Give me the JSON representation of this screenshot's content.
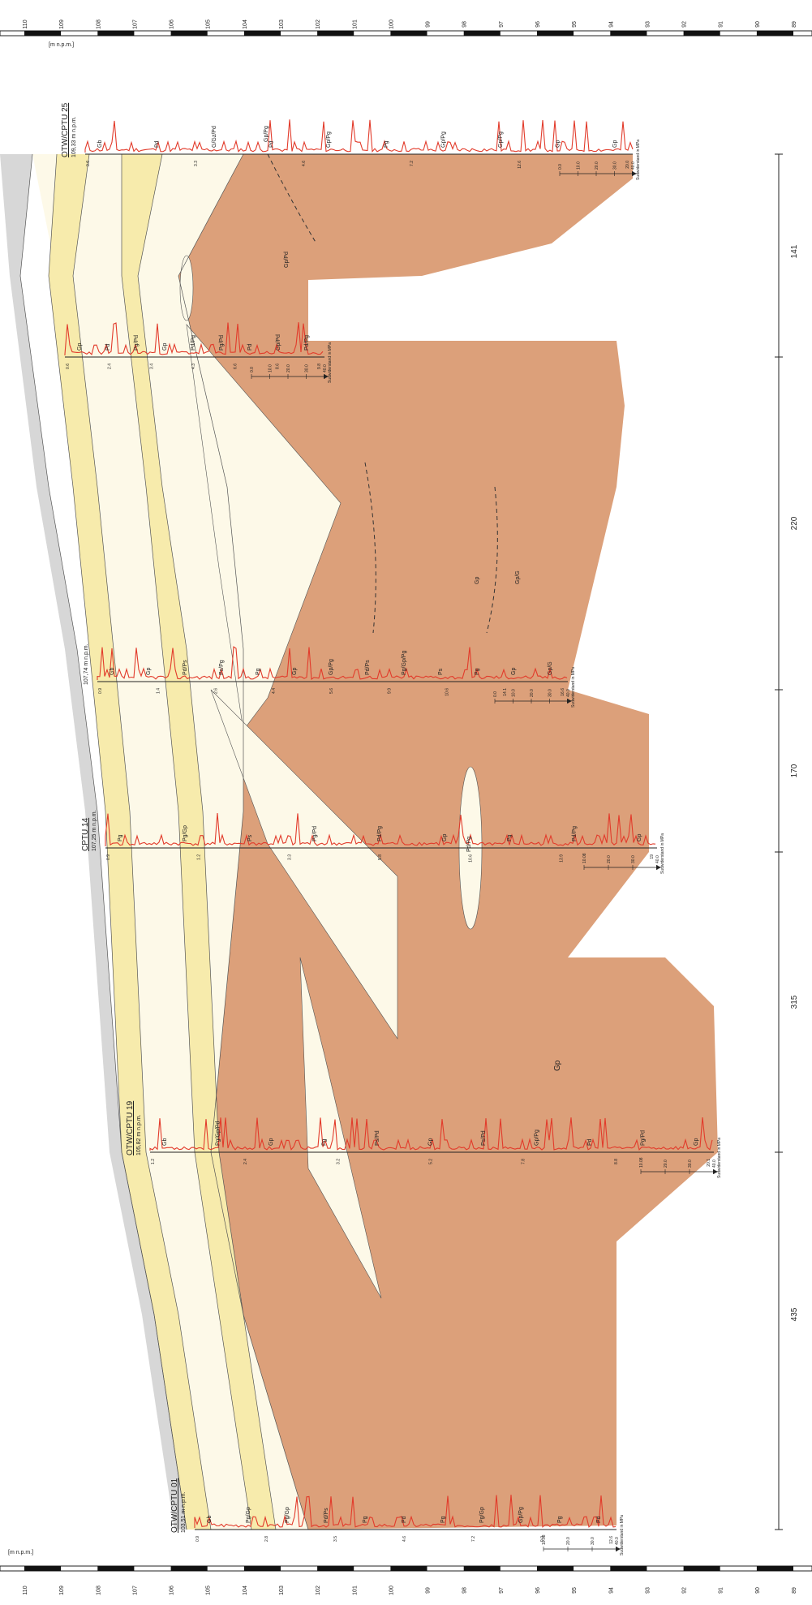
{
  "elevation_unit": "[m n.p.m.]",
  "elevation_ticks": [
    "110",
    "109",
    "108",
    "107",
    "106",
    "105",
    "104",
    "103",
    "102",
    "101",
    "100",
    "99",
    "98",
    "97",
    "96",
    "95",
    "94",
    "93",
    "92",
    "91",
    "90",
    "89"
  ],
  "distances": [
    "141",
    "220",
    "170",
    "315",
    "435"
  ],
  "colors": {
    "gray": "#d7d7d7",
    "cream": "#fdf9e8",
    "yellow": "#f7ebac",
    "orange": "#dca07a",
    "trace": "#e23b2b"
  },
  "profiles": [
    {
      "id": "cptu25",
      "name": "OTW/CPTU 25",
      "elev": "109,33 m n.p.m.",
      "layers": [
        "Gb",
        "Pd",
        "G/Gz/Pd",
        "Pd",
        "Gp/Pg",
        "Pg",
        "Gp/Pg",
        "Gp/Pg",
        "Gp",
        "Gp"
      ],
      "depths": [
        "0.6",
        "3.3",
        "4.6",
        "7.2",
        "12.6",
        "20.0"
      ],
      "axis": [
        "0.0",
        "10.0",
        "20.0",
        "30.0",
        "40.0"
      ],
      "axis_label": "Sudwiderstand in MPa"
    },
    {
      "id": "mid1",
      "name": "",
      "elev": "",
      "layers": [
        "Gp",
        "Pd",
        "Pg/Pd",
        "Gp",
        "Pd/Pg",
        "Pg/Pd",
        "Pd",
        "Gp/Pd",
        "Pd/Pg"
      ],
      "depths": [
        "0.6",
        "2.4",
        "3.4",
        "4.3",
        "6.6",
        "8.6",
        "9.8"
      ],
      "axis": [
        "0.0",
        "10.0",
        "20.0",
        "30.0",
        "40.0"
      ],
      "axis_label": "Sudwiderstand in MPa"
    },
    {
      "id": "mid2",
      "name": "",
      "elev": "107,74 m n.p.m.",
      "layers": [
        "Gb",
        "Gp",
        "Pd/Ps",
        "Ps/Pg",
        "Pg",
        "Gp",
        "Gp/Pg",
        "Pd/Ps",
        "Pg/Gp/Pg",
        "Ps",
        "Pg",
        "Gp",
        "Gp/G"
      ],
      "depths": [
        "0.9",
        "1.4",
        "2.6",
        "4.4",
        "5.6",
        "9.9",
        "10.6",
        "14.1",
        "16.6"
      ],
      "axis": [
        "0.0",
        "10.0",
        "20.0",
        "30.0",
        "40.0"
      ],
      "axis_label": "Sudwiderstand in MPa"
    },
    {
      "id": "cptu14",
      "name": "CPTU 14",
      "elev": "107,25 m n.p.m.",
      "layers": [
        "Pg",
        "Pg/Gp",
        "Ps",
        "Pg/Pd",
        "Pd/Pg",
        "Gp",
        "Pg",
        "Pd/Pg",
        "Gp"
      ],
      "depths": [
        "0.9",
        "1.2",
        "3.3",
        "5.8",
        "10.6",
        "13.9",
        "19"
      ],
      "axis": [
        "10.08",
        "20.0",
        "30.0",
        "40.0"
      ],
      "axis_label": "Sudwiderstand in MPa"
    },
    {
      "id": "cptu19",
      "name": "OTW/CPTU 19",
      "elev": "105,82 m n.p.m.",
      "layers": [
        "Gb",
        "Pg/Gp/Pd",
        "Gp",
        "Pg",
        "Ps/Pd",
        "Gp",
        "Ps/Pd",
        "Gp/Pg",
        "Pd",
        "Pg/Pd",
        "Gp"
      ],
      "depths": [
        "1.2",
        "2.4",
        "3.2",
        "5.2",
        "7.8",
        "8.8",
        "20.1"
      ],
      "axis": [
        "10.08",
        "20.0",
        "30.0",
        "40.0"
      ],
      "axis_label": "Sudwiderstand in MPa"
    },
    {
      "id": "cptu01",
      "name": "OTW/CPTU 01",
      "elev": "103,51 m n.p.m.",
      "layers": [
        "Gb",
        "Pg/Gp",
        "Pg/Gp",
        "Pd/Ps",
        "Pg",
        "Pd",
        "Pg",
        "Pg/Gp",
        "Gp/Pg",
        "Pg",
        "Pd"
      ],
      "depths": [
        "0.9",
        "2.8",
        "3.5",
        "4.6",
        "7.2",
        "9.0",
        "12.6"
      ],
      "axis": [
        "10.08",
        "20.0",
        "30.0",
        "40.0"
      ],
      "axis_label": "Sudwiderstand in MPa"
    }
  ],
  "lens_labels": [
    "Gp/Pg",
    "Gp/Pd",
    "Pd/Pg",
    "Gp",
    "Gp/G"
  ],
  "main_fill_label": "Gp"
}
